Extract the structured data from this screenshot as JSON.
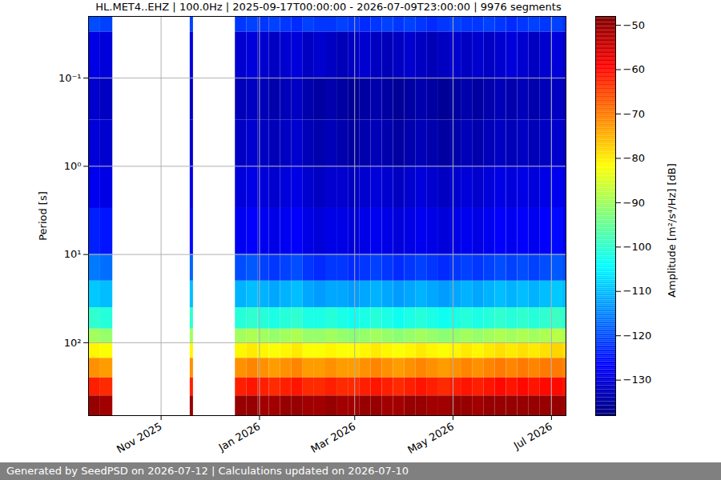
{
  "chart_data": {
    "type": "heatmap",
    "title": "HL.MET4..EHZ | 100.0Hz | 2025-09-17T00:00:00 - 2026-07-09T23:00:00 | 9976 segments",
    "caption": "Generated by SeedPSD on 2026-07-12 | Calculations updated on 2026-07-10",
    "y_label": "Period [s]",
    "log": "y",
    "grid": true,
    "xlim": [
      "2025-09-17",
      "2026-07-10"
    ],
    "xticks": [
      {
        "value": "2025-11-01",
        "label": "Nov 2025"
      },
      {
        "value": "2026-01-01",
        "label": "Jan 2026"
      },
      {
        "value": "2026-03-01",
        "label": "Mar 2026"
      },
      {
        "value": "2026-05-01",
        "label": "May 2026"
      },
      {
        "value": "2026-07-01",
        "label": "Jul 2026"
      }
    ],
    "ylim": [
      0.02,
      670
    ],
    "yticks": [
      {
        "value": 0.1,
        "label": "10⁻¹"
      },
      {
        "value": 1,
        "label": "10⁰"
      },
      {
        "value": 10,
        "label": "10¹"
      },
      {
        "value": 100,
        "label": "10²"
      }
    ],
    "x_bins": [
      "2025-09-17",
      "2025-09-24",
      "2025-10-02",
      "2025-11-19",
      "2025-11-21",
      "2025-12-17",
      "2025-12-24",
      "2025-12-31",
      "2026-01-07",
      "2026-01-14",
      "2026-01-21",
      "2026-01-28",
      "2026-02-04",
      "2026-02-11",
      "2026-02-18",
      "2026-02-25",
      "2026-03-04",
      "2026-03-11",
      "2026-03-18",
      "2026-03-25",
      "2026-04-01",
      "2026-04-08",
      "2026-04-15",
      "2026-04-22",
      "2026-04-29",
      "2026-05-06",
      "2026-05-13",
      "2026-05-20",
      "2026-05-27",
      "2026-06-03",
      "2026-06-10",
      "2026-06-17",
      "2026-06-24",
      "2026-07-01",
      "2026-07-08",
      "2026-07-10"
    ],
    "y_bins": [
      0.02,
      0.03,
      0.1,
      0.3,
      1,
      3,
      10,
      20,
      40,
      70,
      100,
      150,
      250,
      400,
      670
    ],
    "values": [
      [
        -120,
        -121,
        null,
        -121,
        null,
        -122,
        -121,
        -122,
        -121,
        -122,
        -123,
        -121,
        -122,
        -122,
        -121,
        -122,
        -123,
        -122,
        -121,
        -122,
        -121,
        -122,
        -123,
        -122,
        -121,
        -122,
        -122,
        -121,
        -122,
        -123,
        -122,
        -121,
        -122,
        -121,
        -122
      ],
      [
        -129,
        -130,
        null,
        -130,
        null,
        -131,
        -130,
        -131,
        -132,
        -131,
        -130,
        -132,
        -131,
        -132,
        -133,
        -132,
        -131,
        -132,
        -133,
        -132,
        -131,
        -132,
        -133,
        -132,
        -131,
        -132,
        -131,
        -132,
        -131,
        -130,
        -131,
        -132,
        -131,
        -130,
        -131
      ],
      [
        -131,
        -132,
        null,
        -132,
        null,
        -133,
        -132,
        -133,
        -134,
        -133,
        -132,
        -134,
        -135,
        -134,
        -135,
        -136,
        -135,
        -134,
        -135,
        -136,
        -135,
        -134,
        -135,
        -136,
        -135,
        -134,
        -135,
        -134,
        -133,
        -134,
        -133,
        -134,
        -133,
        -132,
        -133
      ],
      [
        -130,
        -131,
        null,
        -131,
        null,
        -132,
        -131,
        -132,
        -133,
        -132,
        -131,
        -133,
        -134,
        -133,
        -134,
        -135,
        -134,
        -133,
        -134,
        -135,
        -134,
        -133,
        -134,
        -135,
        -134,
        -133,
        -134,
        -133,
        -132,
        -133,
        -132,
        -133,
        -132,
        -131,
        -132
      ],
      [
        -128,
        -129,
        null,
        -129,
        null,
        -130,
        -129,
        -130,
        -131,
        -130,
        -129,
        -131,
        -132,
        -131,
        -131,
        -132,
        -131,
        -130,
        -131,
        -132,
        -131,
        -130,
        -131,
        -132,
        -131,
        -130,
        -131,
        -130,
        -129,
        -130,
        -129,
        -130,
        -129,
        -128,
        -129
      ],
      [
        -124,
        -125,
        null,
        -126,
        null,
        -128,
        -127,
        -128,
        -129,
        -128,
        -127,
        -129,
        -130,
        -129,
        -129,
        -130,
        -129,
        -128,
        -129,
        -130,
        -129,
        -128,
        -129,
        -130,
        -129,
        -128,
        -129,
        -128,
        -127,
        -128,
        -127,
        -128,
        -127,
        -126,
        -127
      ],
      [
        -116,
        -117,
        null,
        -118,
        null,
        -120,
        -119,
        -121,
        -122,
        -121,
        -120,
        -122,
        -123,
        -122,
        -122,
        -123,
        -122,
        -121,
        -122,
        -123,
        -122,
        -121,
        -122,
        -123,
        -122,
        -121,
        -122,
        -121,
        -120,
        -121,
        -120,
        -121,
        -120,
        -119,
        -120
      ],
      [
        -109,
        -110,
        null,
        -110,
        null,
        -111,
        -110,
        -111,
        -112,
        -111,
        -110,
        -112,
        -113,
        -112,
        -112,
        -113,
        -112,
        -111,
        -112,
        -113,
        -112,
        -111,
        -112,
        -113,
        -112,
        -111,
        -112,
        -111,
        -110,
        -111,
        -110,
        -111,
        -110,
        -109,
        -110
      ],
      [
        -100,
        -101,
        null,
        -100,
        null,
        -101,
        -100,
        -101,
        -102,
        -101,
        -100,
        -102,
        -102,
        -101,
        -102,
        -103,
        -102,
        -101,
        -102,
        -103,
        -102,
        -101,
        -102,
        -103,
        -102,
        -101,
        -102,
        -101,
        -100,
        -101,
        -100,
        -101,
        -100,
        -99,
        -100
      ],
      [
        -90,
        -91,
        null,
        -90,
        null,
        -90,
        -89,
        -90,
        -91,
        -90,
        -89,
        -91,
        -91,
        -90,
        -91,
        -92,
        -91,
        -90,
        -91,
        -92,
        -91,
        -90,
        -91,
        -92,
        -91,
        -90,
        -91,
        -90,
        -89,
        -90,
        -89,
        -90,
        -89,
        -88,
        -89
      ],
      [
        -81,
        -82,
        null,
        -81,
        null,
        -81,
        -80,
        -81,
        -82,
        -81,
        -80,
        -82,
        -82,
        -81,
        -82,
        -82,
        -81,
        -80,
        -81,
        -82,
        -81,
        -80,
        -81,
        -82,
        -81,
        -80,
        -81,
        -80,
        -79,
        -80,
        -79,
        -80,
        -79,
        -78,
        -79
      ],
      [
        -72,
        -73,
        null,
        -72,
        null,
        -72,
        -71,
        -72,
        -73,
        -72,
        -71,
        -73,
        -73,
        -72,
        -73,
        -73,
        -72,
        -71,
        -72,
        -73,
        -72,
        -71,
        -72,
        -73,
        -72,
        -71,
        -72,
        -71,
        -70,
        -71,
        -70,
        -71,
        -70,
        -70,
        -71
      ],
      [
        -62,
        -63,
        null,
        -62,
        null,
        -62,
        -61,
        -62,
        -63,
        -62,
        -61,
        -63,
        -63,
        -62,
        -63,
        -63,
        -62,
        -61,
        -62,
        -63,
        -62,
        -61,
        -62,
        -63,
        -62,
        -61,
        -62,
        -61,
        -60,
        -61,
        -60,
        -61,
        -60,
        -60,
        -61
      ],
      [
        -50,
        -51,
        null,
        -50,
        null,
        -50,
        -50,
        -51,
        -51,
        -50,
        -50,
        -51,
        -51,
        -50,
        -51,
        -51,
        -50,
        -50,
        -51,
        -51,
        -50,
        -50,
        -51,
        -51,
        -50,
        -50,
        -51,
        -50,
        -50,
        -50,
        -50,
        -50,
        -50,
        -50,
        -51
      ]
    ],
    "colorbar": {
      "label": "Amplitude [m²/s⁴/Hz] [dB]",
      "lim": [
        -138,
        -48
      ],
      "ticks": [
        -130,
        -120,
        -110,
        -100,
        -90,
        -80,
        -70,
        -60,
        -50
      ]
    }
  }
}
